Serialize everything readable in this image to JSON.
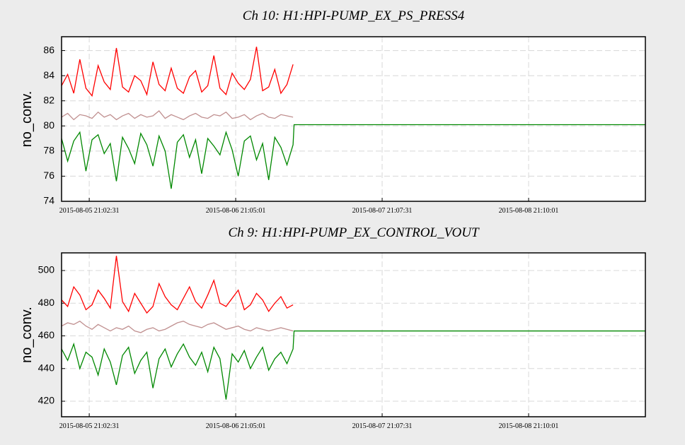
{
  "chart_data": [
    {
      "type": "line",
      "title": "Ch 10: H1:HPI-PUMP_EX_PS_PRESS4",
      "ylabel": "no_conv.",
      "x": [
        "2015-08-05 16:30:00",
        "2015-08-05 17:30:00",
        "2015-08-05 18:30:00",
        "2015-08-05 19:30:00",
        "2015-08-05 20:30:00",
        "2015-08-05 21:30:00",
        "2015-08-05 22:30:00",
        "2015-08-05 23:30:00",
        "2015-08-06 00:30:00",
        "2015-08-06 01:30:00",
        "2015-08-06 02:30:00",
        "2015-08-06 03:30:00",
        "2015-08-06 04:30:00",
        "2015-08-06 05:30:00",
        "2015-08-06 06:30:00",
        "2015-08-06 07:30:00",
        "2015-08-06 08:30:00",
        "2015-08-06 09:30:00",
        "2015-08-06 10:30:00",
        "2015-08-06 11:30:00",
        "2015-08-06 12:30:00",
        "2015-08-06 13:30:00",
        "2015-08-06 14:30:00",
        "2015-08-06 15:30:00",
        "2015-08-06 16:30:00",
        "2015-08-06 17:30:00",
        "2015-08-06 18:30:00",
        "2015-08-06 19:30:00",
        "2015-08-06 20:30:00",
        "2015-08-06 21:30:00",
        "2015-08-06 22:30:00",
        "2015-08-06 23:30:00",
        "2015-08-07 00:30:00",
        "2015-08-07 01:30:00",
        "2015-08-07 02:30:00",
        "2015-08-07 03:30:00",
        "2015-08-07 04:30:00",
        "2015-08-07 05:30:00",
        "2015-08-07 06:30:00",
        "2015-08-07 06:40:00",
        "2015-08-09 16:20:00"
      ],
      "series": [
        {
          "color": "#ff0000",
          "values": [
            83.2,
            84.1,
            82.6,
            85.3,
            83.0,
            82.4,
            84.8,
            83.5,
            82.9,
            86.2,
            83.1,
            82.7,
            84.0,
            83.6,
            82.5,
            85.1,
            83.3,
            82.8,
            84.6,
            83.0,
            82.6,
            83.9,
            84.4,
            82.7,
            83.2,
            85.6,
            83.0,
            82.5,
            84.2,
            83.4,
            82.9,
            83.7,
            86.3,
            82.8,
            83.1,
            84.5,
            82.6,
            83.3,
            84.9,
            null,
            null
          ]
        },
        {
          "color": "#c09090",
          "values": [
            80.7,
            81.0,
            80.5,
            80.9,
            80.8,
            80.6,
            81.1,
            80.7,
            80.9,
            80.5,
            80.8,
            81.0,
            80.6,
            80.9,
            80.7,
            80.8,
            81.2,
            80.6,
            80.9,
            80.7,
            80.5,
            80.8,
            81.0,
            80.7,
            80.6,
            80.9,
            80.8,
            81.1,
            80.6,
            80.7,
            80.9,
            80.5,
            80.8,
            81.0,
            80.7,
            80.6,
            80.9,
            80.8,
            80.7,
            null,
            null
          ]
        },
        {
          "color": "#008800",
          "values": [
            79.0,
            77.2,
            78.8,
            79.5,
            76.4,
            78.9,
            79.3,
            77.8,
            78.6,
            75.6,
            79.1,
            78.2,
            77.0,
            79.4,
            78.5,
            76.8,
            79.2,
            78.0,
            75.0,
            78.7,
            79.3,
            77.5,
            78.9,
            76.2,
            79.0,
            78.4,
            77.7,
            79.5,
            78.1,
            76.0,
            78.8,
            79.2,
            77.3,
            78.6,
            75.7,
            79.1,
            78.3,
            76.9,
            78.5,
            80.1,
            80.1
          ]
        }
      ],
      "xlim": [
        "2015-08-05 16:30:00",
        "2015-08-09 16:20:00"
      ],
      "xticks": [
        "2015-08-05 21:02:31",
        "2015-08-06 21:05:01",
        "2015-08-07 21:07:31",
        "2015-08-08 21:10:01"
      ],
      "ylim": [
        74,
        87.1
      ],
      "yticks": [
        74,
        76,
        78,
        80,
        82,
        84,
        86
      ],
      "grid": true
    },
    {
      "type": "line",
      "title": "Ch 9: H1:HPI-PUMP_EX_CONTROL_VOUT",
      "ylabel": "no_conv.",
      "x": [
        "2015-08-05 16:30:00",
        "2015-08-05 17:30:00",
        "2015-08-05 18:30:00",
        "2015-08-05 19:30:00",
        "2015-08-05 20:30:00",
        "2015-08-05 21:30:00",
        "2015-08-05 22:30:00",
        "2015-08-05 23:30:00",
        "2015-08-06 00:30:00",
        "2015-08-06 01:30:00",
        "2015-08-06 02:30:00",
        "2015-08-06 03:30:00",
        "2015-08-06 04:30:00",
        "2015-08-06 05:30:00",
        "2015-08-06 06:30:00",
        "2015-08-06 07:30:00",
        "2015-08-06 08:30:00",
        "2015-08-06 09:30:00",
        "2015-08-06 10:30:00",
        "2015-08-06 11:30:00",
        "2015-08-06 12:30:00",
        "2015-08-06 13:30:00",
        "2015-08-06 14:30:00",
        "2015-08-06 15:30:00",
        "2015-08-06 16:30:00",
        "2015-08-06 17:30:00",
        "2015-08-06 18:30:00",
        "2015-08-06 19:30:00",
        "2015-08-06 20:30:00",
        "2015-08-06 21:30:00",
        "2015-08-06 22:30:00",
        "2015-08-06 23:30:00",
        "2015-08-07 00:30:00",
        "2015-08-07 01:30:00",
        "2015-08-07 02:30:00",
        "2015-08-07 03:30:00",
        "2015-08-07 04:30:00",
        "2015-08-07 05:30:00",
        "2015-08-07 06:30:00",
        "2015-08-07 06:40:00",
        "2015-08-09 16:20:00"
      ],
      "series": [
        {
          "color": "#ff0000",
          "values": [
            482,
            478,
            490,
            485,
            476,
            479,
            488,
            483,
            477,
            509,
            481,
            475,
            486,
            480,
            474,
            478,
            492,
            484,
            479,
            476,
            483,
            490,
            481,
            477,
            485,
            494,
            480,
            478,
            483,
            488,
            476,
            479,
            486,
            482,
            475,
            480,
            484,
            477,
            479,
            null,
            null
          ]
        },
        {
          "color": "#c09090",
          "values": [
            466,
            468,
            467,
            469,
            466,
            464,
            467,
            465,
            463,
            465,
            464,
            466,
            463,
            462,
            464,
            465,
            463,
            464,
            466,
            468,
            469,
            467,
            466,
            465,
            467,
            468,
            466,
            464,
            465,
            466,
            464,
            463,
            465,
            464,
            463,
            464,
            465,
            464,
            463,
            null,
            null
          ]
        },
        {
          "color": "#008800",
          "values": [
            452,
            445,
            455,
            440,
            450,
            447,
            436,
            452,
            444,
            430,
            448,
            453,
            437,
            445,
            450,
            428,
            446,
            452,
            441,
            449,
            455,
            447,
            442,
            450,
            438,
            453,
            446,
            421,
            449,
            444,
            451,
            440,
            447,
            453,
            439,
            446,
            450,
            443,
            452,
            463,
            463
          ]
        }
      ],
      "xlim": [
        "2015-08-05 16:30:00",
        "2015-08-09 16:20:00"
      ],
      "xticks": [
        "2015-08-05 21:02:31",
        "2015-08-06 21:05:01",
        "2015-08-07 21:07:31",
        "2015-08-08 21:10:01"
      ],
      "ylim": [
        410.5,
        510.8
      ],
      "yticks": [
        420,
        440,
        460,
        480,
        500
      ],
      "grid": true
    }
  ]
}
